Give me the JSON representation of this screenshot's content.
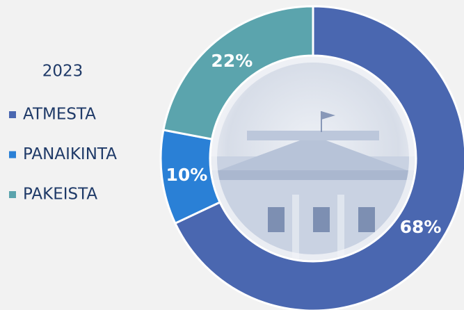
{
  "chart_data": {
    "type": "donut",
    "title": "2023",
    "categories": [
      "ATMESTA",
      "PANAIKINTA",
      "PAKEISTA"
    ],
    "values": [
      68,
      10,
      22
    ],
    "value_labels": [
      "68%",
      "10%",
      "22%"
    ],
    "colors": [
      "#4a67b0",
      "#2a80d6",
      "#5ba4ad"
    ]
  }
}
